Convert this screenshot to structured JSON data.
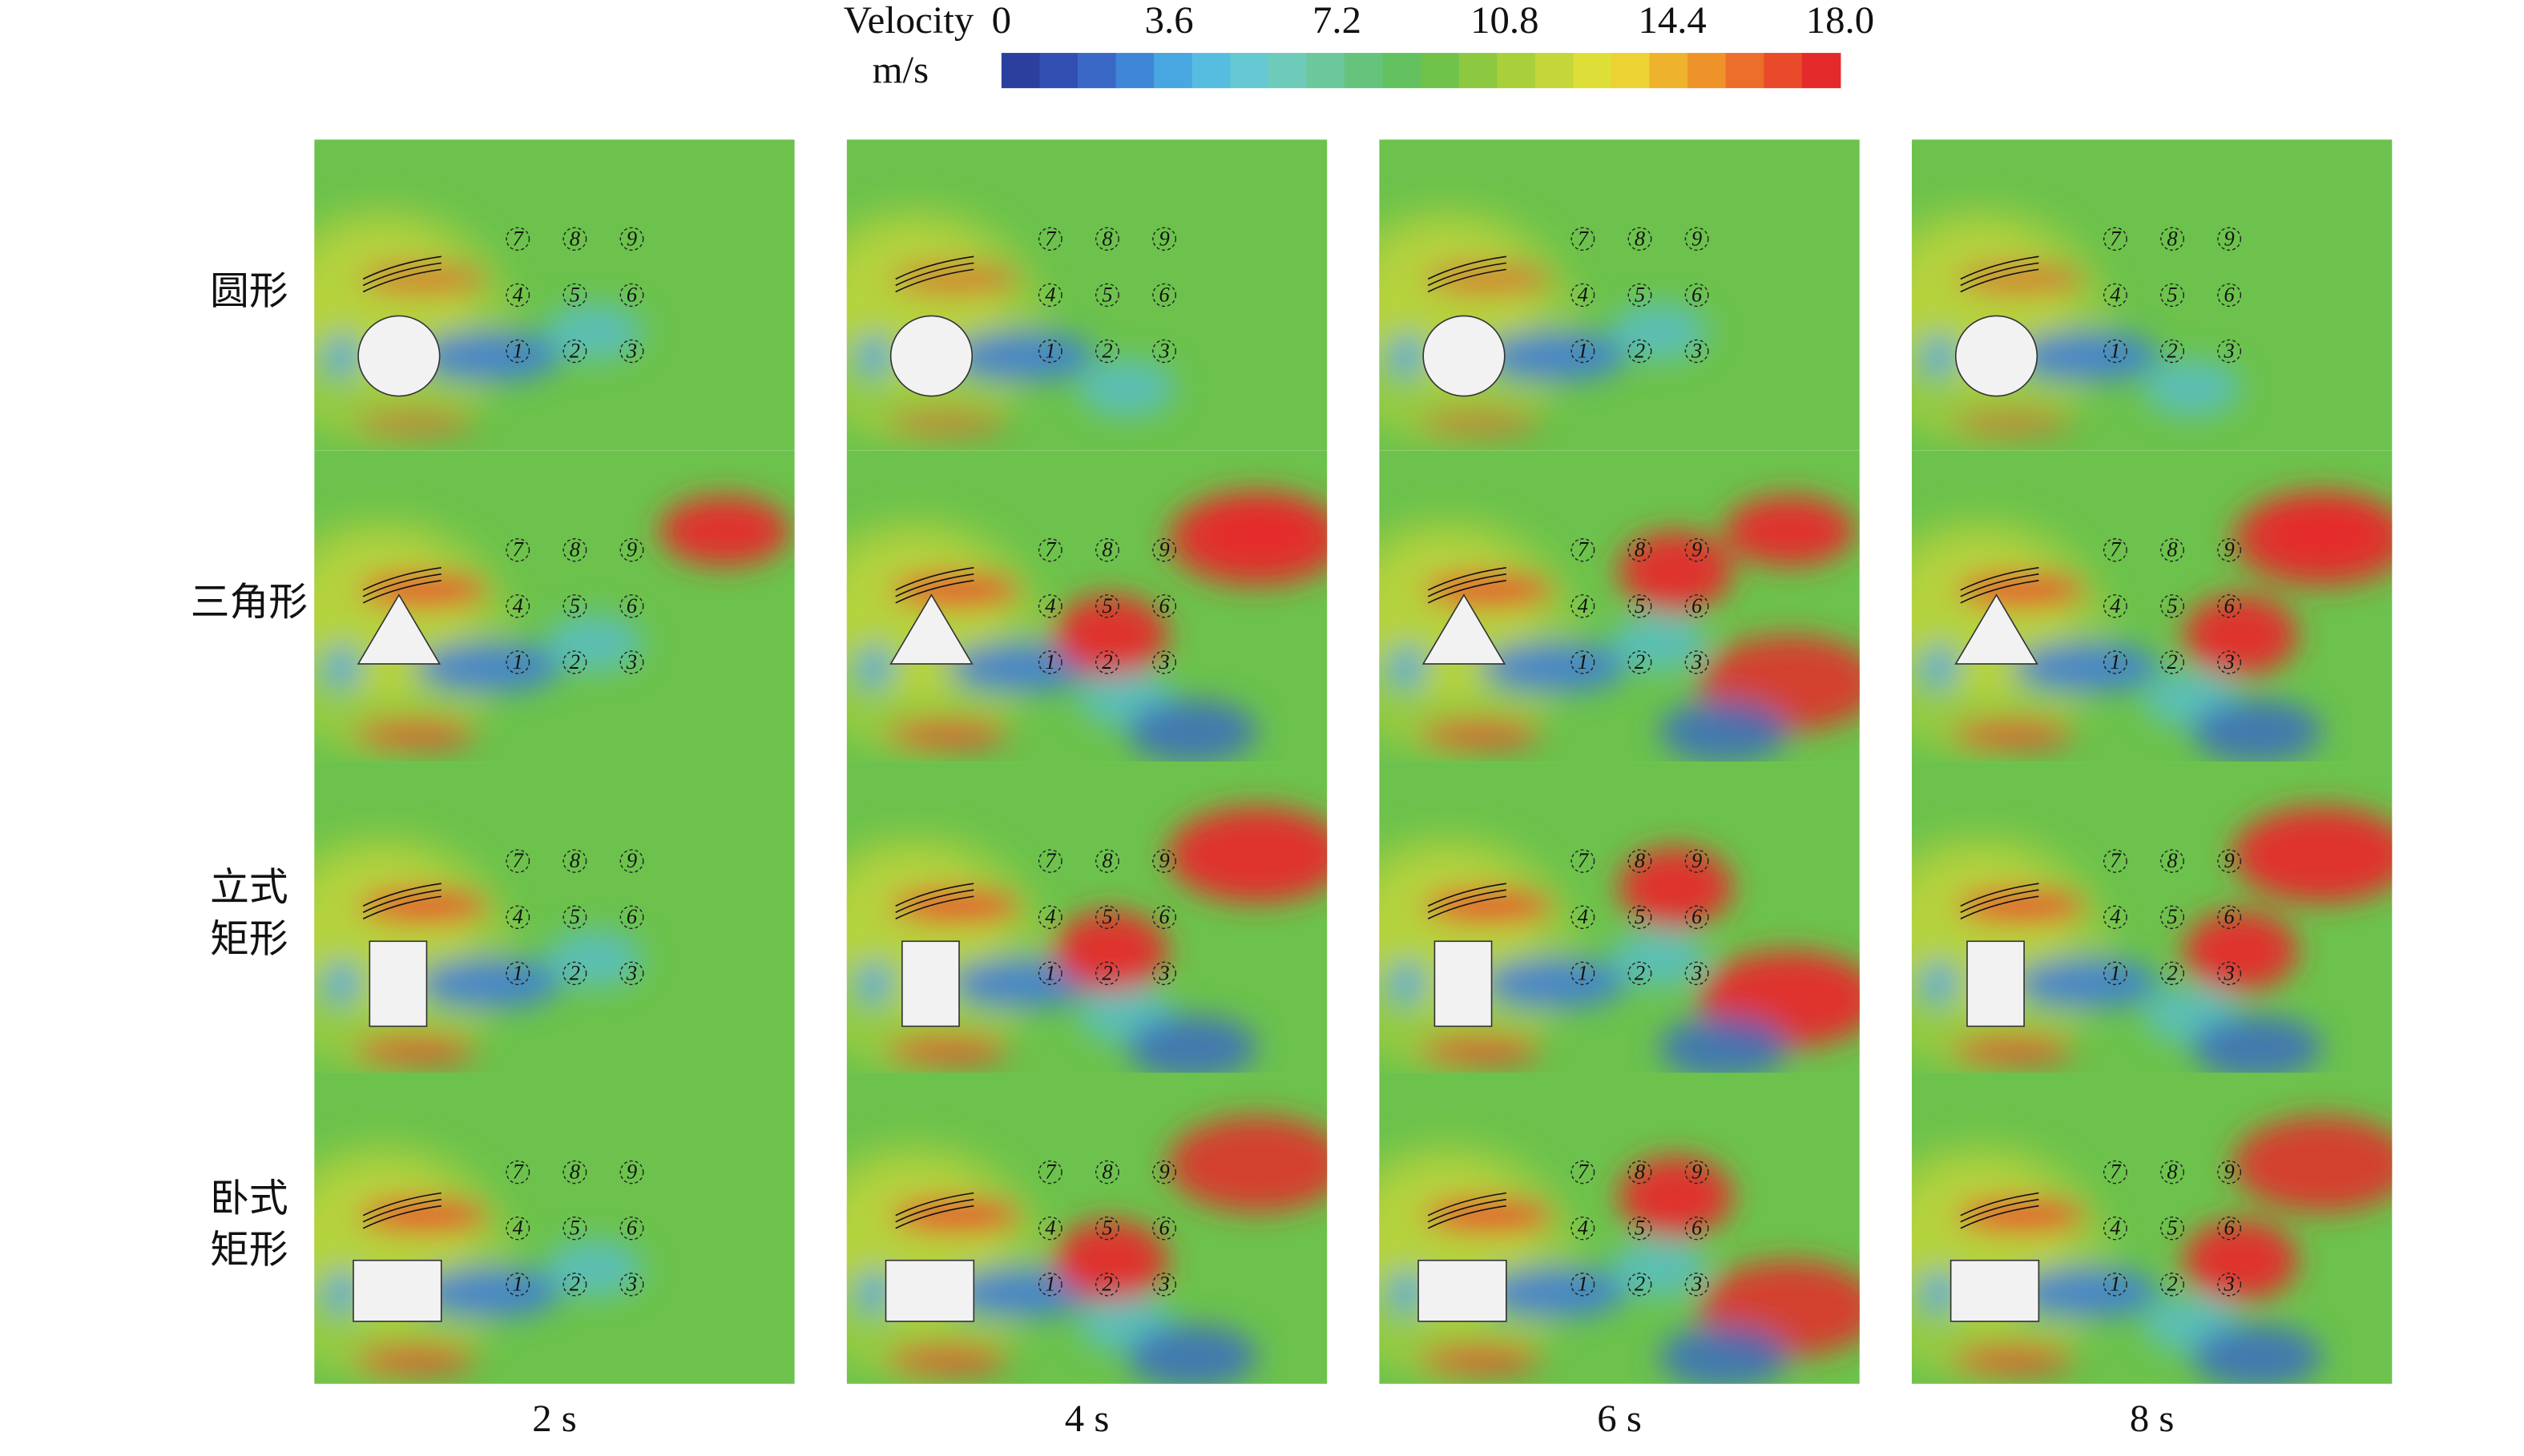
{
  "colorbar": {
    "title": "Velocity",
    "unit": "m/s",
    "range": [
      0,
      18
    ],
    "ticks": [
      0,
      3.6,
      7.2,
      10.8,
      14.4,
      {
        "value": 18,
        "label": "18.0"
      }
    ]
  },
  "rows": [
    {
      "label_lines": [
        "圆形"
      ]
    },
    {
      "label_lines": [
        "三角形"
      ]
    },
    {
      "label_lines": [
        "立式",
        "矩形"
      ]
    },
    {
      "label_lines": [
        "卧式",
        "矩形"
      ]
    }
  ],
  "columns": [
    "2 s",
    "4 s",
    "6 s",
    "8 s"
  ],
  "probes": [
    1,
    2,
    3,
    4,
    5,
    6,
    7,
    8,
    9
  ]
}
